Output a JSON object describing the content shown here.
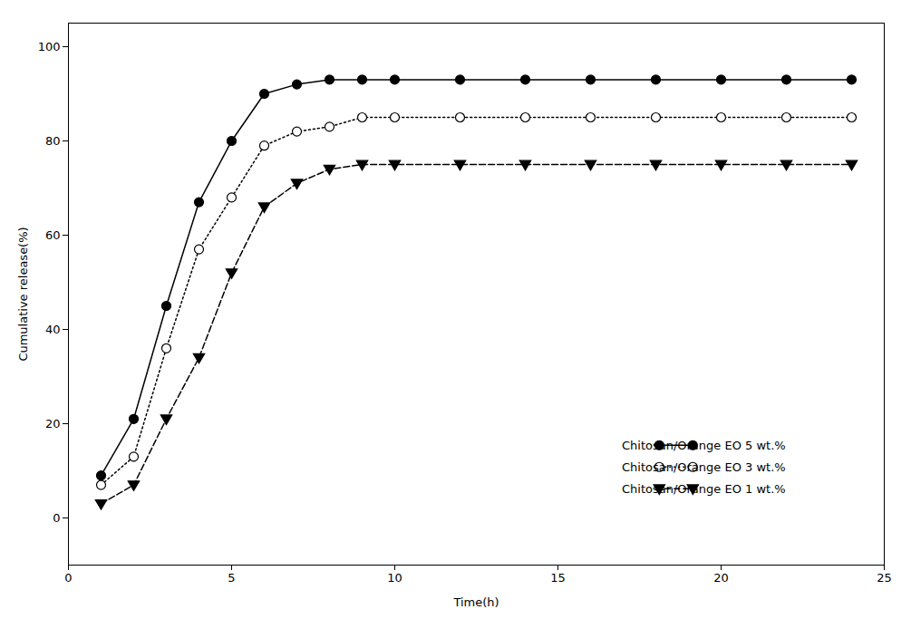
{
  "chart_data": {
    "type": "line",
    "x": [
      1,
      2,
      3,
      4,
      5,
      6,
      7,
      8,
      9,
      10,
      12,
      14,
      16,
      18,
      20,
      22,
      24
    ],
    "series": [
      {
        "name": "Chitosan/Orange EO 5 wt.%",
        "color": "#000000",
        "marker": "circle",
        "line_style": "solid",
        "values": [
          9,
          21,
          45,
          67,
          80,
          90,
          92,
          93,
          93,
          93,
          93,
          93,
          93,
          93,
          93,
          93,
          93
        ]
      },
      {
        "name": "Chitosan/Orange EO 3 wt.%",
        "color": "#000000",
        "marker": "open-circle",
        "line_style": "dotted",
        "values": [
          7,
          13,
          36,
          57,
          68,
          79,
          82,
          83,
          85,
          85,
          85,
          85,
          85,
          85,
          85,
          85,
          85
        ]
      },
      {
        "name": "Chitosan/Orange EO 1 wt.%",
        "color": "#000000",
        "marker": "triangle-down",
        "line_style": "dashed",
        "values": [
          3,
          7,
          21,
          34,
          52,
          66,
          71,
          74,
          75,
          75,
          75,
          75,
          75,
          75,
          75,
          75,
          75
        ]
      }
    ],
    "xlabel": "Time(h)",
    "ylabel": "Cumulative release(%)",
    "xlim": [
      0,
      25
    ],
    "ylim": [
      -10,
      105
    ],
    "xticks": [
      0,
      5,
      10,
      15,
      20,
      25
    ],
    "yticks": [
      0,
      20,
      40,
      60,
      80,
      100
    ],
    "grid": false,
    "legend": "lower right"
  }
}
